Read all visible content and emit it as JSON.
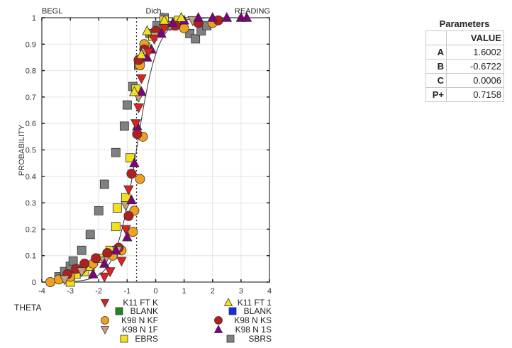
{
  "parameters": {
    "title": "Parameters",
    "header": "VALUE",
    "rows": [
      {
        "key": "A",
        "value": "1.6002"
      },
      {
        "key": "B",
        "value": "-0.6722"
      },
      {
        "key": "C",
        "value": "0.0006"
      },
      {
        "key": "P+",
        "value": "0.7158"
      }
    ]
  },
  "chart_data": {
    "type": "scatter",
    "title": "",
    "top_labels": {
      "left": "BEGL",
      "center": "Dich.",
      "right": "READING"
    },
    "xlabel": "THETA",
    "ylabel": "PROBABILITY",
    "xlim": [
      -4,
      4
    ],
    "ylim": [
      0,
      1
    ],
    "xticks": [
      "-4",
      "-3",
      "-2",
      "-1",
      "0",
      "1",
      "2",
      "3",
      "4"
    ],
    "yticks": [
      "0",
      "0.1",
      "0.2",
      "0.3",
      "0.4",
      "0.5",
      "0.6",
      "0.7",
      "0.8",
      "0.9",
      "1"
    ],
    "grid": true,
    "dichotomy_line_x": -0.6722,
    "curve": {
      "model": "3PL",
      "a": 1.6002,
      "b": -0.6722,
      "c": 0.0006
    },
    "legend_position": "bottom",
    "series": [
      {
        "name": "K11 FT K",
        "marker": "triangle-down",
        "color": "#e02020",
        "points": [
          [
            -1.8,
            0.02
          ],
          [
            -1.6,
            0.04
          ],
          [
            -1.2,
            0.08
          ],
          [
            -1.05,
            0.2
          ],
          [
            -0.95,
            0.35
          ],
          [
            -0.7,
            0.6
          ],
          [
            -0.6,
            0.66
          ],
          [
            -0.5,
            0.77
          ],
          [
            -0.25,
            0.87
          ],
          [
            -0.05,
            0.92
          ],
          [
            0.3,
            0.96
          ]
        ]
      },
      {
        "name": "K11 FT 1",
        "marker": "triangle-up",
        "color": "#f0e020",
        "points": [
          [
            -0.75,
            0.72
          ],
          [
            -0.5,
            0.86
          ],
          [
            -0.3,
            0.95
          ],
          [
            0.3,
            0.99
          ],
          [
            0.9,
            1.0
          ]
        ]
      },
      {
        "name": "BLANK",
        "marker": "square",
        "color": "#1a8a1a",
        "points": []
      },
      {
        "name": "BLANK",
        "marker": "square",
        "color": "#1030e0",
        "points": []
      },
      {
        "name": "K98 N KF",
        "marker": "circle",
        "color": "#f0a020",
        "points": [
          [
            -3.7,
            0.0
          ],
          [
            -3.4,
            0.01
          ],
          [
            -3.0,
            0.02
          ],
          [
            -2.6,
            0.05
          ],
          [
            -2.2,
            0.07
          ],
          [
            -1.5,
            0.1
          ],
          [
            -1.2,
            0.12
          ],
          [
            -0.8,
            0.19
          ],
          [
            -0.75,
            0.27
          ],
          [
            -0.55,
            0.39
          ],
          [
            -0.45,
            0.55
          ],
          [
            -0.55,
            0.82
          ],
          [
            -0.4,
            0.9
          ],
          [
            -0.1,
            0.94
          ],
          [
            0.3,
            0.97
          ],
          [
            1.0,
            0.96
          ],
          [
            2.0,
            0.98
          ]
        ]
      },
      {
        "name": "K98 N KS",
        "marker": "circle",
        "color": "#b02020",
        "points": [
          [
            -3.1,
            0.03
          ],
          [
            -2.8,
            0.05
          ],
          [
            -2.5,
            0.07
          ],
          [
            -2.1,
            0.09
          ],
          [
            -1.7,
            0.11
          ],
          [
            -1.3,
            0.13
          ],
          [
            -0.95,
            0.25
          ],
          [
            -0.85,
            0.41
          ],
          [
            -0.65,
            0.56
          ],
          [
            -0.6,
            0.84
          ],
          [
            -0.4,
            0.88
          ],
          [
            0.0,
            0.95
          ],
          [
            0.7,
            0.97
          ],
          [
            1.5,
            0.98
          ],
          [
            2.2,
            0.99
          ]
        ]
      },
      {
        "name": "K98 N 1F",
        "marker": "triangle-down",
        "color": "#c8a080",
        "points": [
          [
            -3.2,
            0.01
          ],
          [
            -2.6,
            0.04
          ],
          [
            -1.8,
            0.08
          ],
          [
            -1.35,
            0.12
          ],
          [
            -1.05,
            0.29
          ],
          [
            -0.7,
            0.6
          ],
          [
            -0.6,
            0.7
          ],
          [
            -0.35,
            0.87
          ],
          [
            -0.05,
            0.93
          ],
          [
            0.5,
            0.97
          ],
          [
            1.3,
            0.99
          ]
        ]
      },
      {
        "name": "K98 N 1S",
        "marker": "triangle-up",
        "color": "#800080",
        "points": [
          [
            -2.2,
            0.03
          ],
          [
            -1.8,
            0.07
          ],
          [
            -1.4,
            0.12
          ],
          [
            -1.0,
            0.17
          ],
          [
            -0.85,
            0.31
          ],
          [
            -0.75,
            0.45
          ],
          [
            -0.65,
            0.59
          ],
          [
            -0.5,
            0.72
          ],
          [
            -0.3,
            0.85
          ],
          [
            -0.15,
            0.88
          ],
          [
            0.2,
            0.94
          ],
          [
            0.6,
            0.98
          ],
          [
            1.0,
            0.99
          ],
          [
            1.5,
            1.0
          ],
          [
            2.0,
            1.0
          ],
          [
            2.5,
            1.0
          ],
          [
            3.0,
            1.0
          ],
          [
            3.2,
            1.0
          ]
        ]
      },
      {
        "name": "EBRS",
        "marker": "square",
        "color": "#f0e020",
        "points": [
          [
            -3.0,
            0.0
          ],
          [
            -2.8,
            0.03
          ],
          [
            -2.5,
            0.04
          ],
          [
            -2.3,
            0.06
          ],
          [
            -2.0,
            0.09
          ],
          [
            -1.6,
            0.12
          ],
          [
            -1.4,
            0.21
          ],
          [
            -1.35,
            0.28
          ],
          [
            -1.05,
            0.32
          ],
          [
            -0.9,
            0.47
          ],
          [
            -0.7,
            0.73
          ],
          [
            -0.55,
            0.84
          ],
          [
            -0.35,
            0.89
          ],
          [
            -0.1,
            0.93
          ],
          [
            0.3,
            0.99
          ],
          [
            0.8,
            0.99
          ]
        ]
      },
      {
        "name": "SBRS",
        "marker": "square",
        "color": "#808080",
        "points": [
          [
            -3.4,
            0.02
          ],
          [
            -3.2,
            0.04
          ],
          [
            -3.0,
            0.06
          ],
          [
            -2.9,
            0.08
          ],
          [
            -2.6,
            0.12
          ],
          [
            -2.3,
            0.18
          ],
          [
            -2.0,
            0.27
          ],
          [
            -1.8,
            0.37
          ],
          [
            -1.4,
            0.49
          ],
          [
            -1.1,
            0.59
          ],
          [
            -1.0,
            0.67
          ],
          [
            -0.8,
            0.74
          ],
          [
            -0.6,
            0.82
          ],
          [
            -0.4,
            0.89
          ],
          [
            -0.2,
            0.94
          ],
          [
            0.05,
            0.97
          ],
          [
            0.3,
            1.0
          ],
          [
            0.55,
            0.97
          ],
          [
            1.2,
            0.94
          ],
          [
            1.4,
            0.92
          ],
          [
            1.6,
            0.95
          ],
          [
            1.8,
            0.97
          ]
        ]
      }
    ]
  }
}
